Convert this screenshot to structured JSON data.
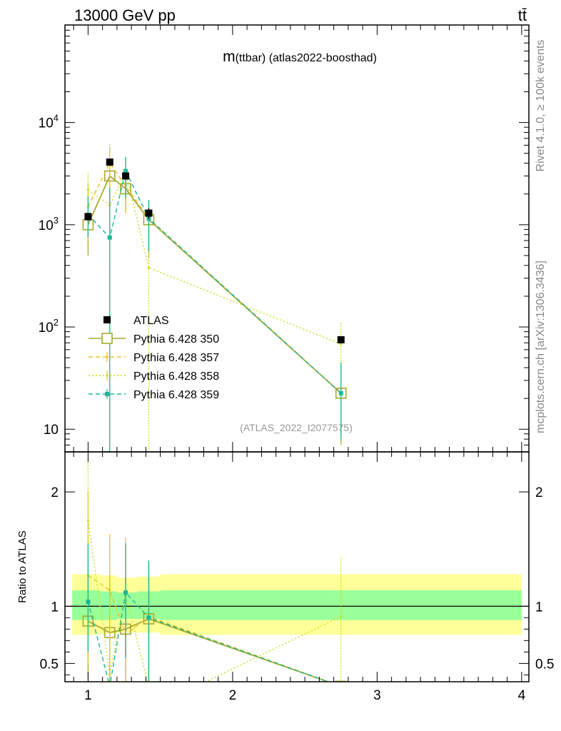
{
  "header": {
    "left_label": "13000 GeV pp",
    "right_label": "tt̄",
    "side_top": "Rivet 4.1.0, ≥ 100k events",
    "side_bottom": "mcplots.cern.ch [arXiv:1306.3436]"
  },
  "chart_data": [
    {
      "type": "scatter",
      "title": "m(ttbar) (atlas2022-boosthad)",
      "title_prefix": "m",
      "title_rest": "(ttbar) (atlas2022-boosthad)",
      "watermark": "(ATLAS_2022_I2077575)",
      "yscale": "log",
      "ylim": [
        6,
        90000
      ],
      "xlim": [
        0.84,
        4.05
      ],
      "y_ticks": [
        {
          "value": 10,
          "base": "10",
          "exp": ""
        },
        {
          "value": 100,
          "base": "10",
          "exp": "2"
        },
        {
          "value": 1000,
          "base": "10",
          "exp": "3"
        },
        {
          "value": 10000,
          "base": "10",
          "exp": "4"
        }
      ],
      "legend_position": "center-left",
      "series": [
        {
          "name": "ATLAS",
          "color": "#000000",
          "style": "data",
          "x": [
            1.0,
            1.15,
            1.26,
            1.42,
            2.75
          ],
          "y": [
            1200,
            4100,
            3000,
            1300,
            75
          ],
          "yerr_lo": [
            1100,
            3800,
            2800,
            1150,
            72
          ],
          "yerr_hi": [
            1300,
            4400,
            3200,
            1450,
            78
          ]
        },
        {
          "name": "Pythia 6.428 350",
          "color": "#a8a830",
          "style": "solid-square",
          "x": [
            1.0,
            1.15,
            1.26,
            1.42,
            2.75
          ],
          "y": [
            1000,
            3000,
            2250,
            1120,
            22.5
          ],
          "yerr_lo": [
            500,
            1500,
            1300,
            480,
            7
          ],
          "yerr_hi": [
            1600,
            4600,
            3400,
            1700,
            45
          ]
        },
        {
          "name": "Pythia 6.428 357",
          "color": "#e6c229",
          "style": "dashed",
          "x": [
            1.0,
            1.15,
            1.26,
            1.42,
            2.75
          ],
          "y": [
            1500,
            4000,
            2400,
            1150,
            22.5
          ],
          "yerr_lo": [
            700,
            2000,
            1300,
            550,
            8
          ],
          "yerr_hi": [
            2600,
            5800,
            3600,
            1750,
            45
          ]
        },
        {
          "name": "Pythia 6.428 358",
          "color": "#c8dd14",
          "style": "dotted",
          "x": [
            1.0,
            1.15,
            1.26,
            1.42,
            2.75
          ],
          "y": [
            2200,
            1550,
            3300,
            380,
            68
          ],
          "yerr_lo": [
            900,
            400,
            1500,
            4,
            20
          ],
          "yerr_hi": [
            3300,
            6400,
            4600,
            1500,
            110
          ]
        },
        {
          "name": "Pythia 6.428 359",
          "color": "#1ab896",
          "style": "dashed-square",
          "x": [
            1.0,
            1.15,
            1.26,
            1.42,
            2.75
          ],
          "y": [
            1250,
            750,
            3350,
            1150,
            22.5
          ],
          "yerr_lo": [
            750,
            4,
            1800,
            550,
            8
          ],
          "yerr_hi": [
            1900,
            2300,
            4600,
            1750,
            45
          ]
        }
      ]
    },
    {
      "type": "scatter",
      "ylabel": "Ratio to ATLAS",
      "ylim": [
        0.34,
        2.35
      ],
      "xlim": [
        0.84,
        4.05
      ],
      "x_ticks": [
        1,
        2,
        3,
        4
      ],
      "x_tick_labels": [
        "1",
        "2",
        "3",
        "4"
      ],
      "y_ticks": [
        0.5,
        1,
        2
      ],
      "y_tick_labels": [
        "0.5",
        "1",
        "2"
      ],
      "bands": {
        "outer_color": "#ffff99",
        "inner_color": "#99ff99",
        "segments": [
          {
            "x0": 0.89,
            "x1": 1.08,
            "outer": [
              0.75,
              1.28
            ],
            "inner": [
              0.88,
              1.14
            ]
          },
          {
            "x0": 1.08,
            "x1": 1.2,
            "outer": [
              0.76,
              1.27
            ],
            "inner": [
              0.88,
              1.13
            ]
          },
          {
            "x0": 1.2,
            "x1": 1.34,
            "outer": [
              0.77,
              1.25
            ],
            "inner": [
              0.89,
              1.12
            ]
          },
          {
            "x0": 1.34,
            "x1": 1.5,
            "outer": [
              0.77,
              1.26
            ],
            "inner": [
              0.89,
              1.13
            ]
          },
          {
            "x0": 1.5,
            "x1": 4.0,
            "outer": [
              0.75,
              1.28
            ],
            "inner": [
              0.88,
              1.14
            ]
          }
        ]
      },
      "series": [
        {
          "name": "Pythia 6.428 350",
          "color": "#a8a830",
          "style": "solid-square",
          "x": [
            1.0,
            1.15,
            1.26,
            1.42,
            2.75
          ],
          "y": [
            0.87,
            0.77,
            0.8,
            0.89,
            0.3
          ],
          "yerr_lo": [
            0.37,
            0.3,
            0.33,
            0.3,
            0.3
          ],
          "yerr_hi": [
            1.37,
            1.27,
            1.27,
            1.38,
            0.3
          ]
        },
        {
          "name": "Pythia 6.428 357",
          "color": "#e6c229",
          "style": "dashed",
          "x": [
            1.0,
            1.15,
            1.26,
            1.42,
            2.75
          ],
          "y": [
            1.27,
            1.14,
            0.75,
            0.91,
            0.3
          ],
          "yerr_lo": [
            0.5,
            0.4,
            0.33,
            0.3,
            0.3
          ],
          "yerr_hi": [
            2.0,
            1.63,
            1.6,
            1.4,
            0.3
          ]
        },
        {
          "name": "Pythia 6.428 358",
          "color": "#c8dd14",
          "style": "dotted",
          "x": [
            1.0,
            1.15,
            1.26,
            1.42,
            1.75,
            2.75
          ],
          "y": [
            1.75,
            0.4,
            1.1,
            0.3,
            0.3,
            0.91
          ],
          "yerr_lo": [
            0.7,
            0.3,
            0.55,
            0.3,
            0.3,
            0.3
          ],
          "yerr_hi": [
            2.3,
            1.6,
            1.6,
            1.2,
            0.3,
            1.43
          ]
        },
        {
          "name": "Pythia 6.428 359",
          "color": "#1ab896",
          "style": "dashed-square",
          "x": [
            1.0,
            1.15,
            1.26,
            1.42,
            2.75
          ],
          "y": [
            1.04,
            0.3,
            1.12,
            0.9,
            0.3
          ],
          "yerr_lo": [
            0.6,
            0.3,
            0.55,
            0.3,
            0.3
          ],
          "yerr_hi": [
            1.55,
            0.3,
            1.55,
            1.4,
            0.3
          ]
        }
      ]
    }
  ]
}
